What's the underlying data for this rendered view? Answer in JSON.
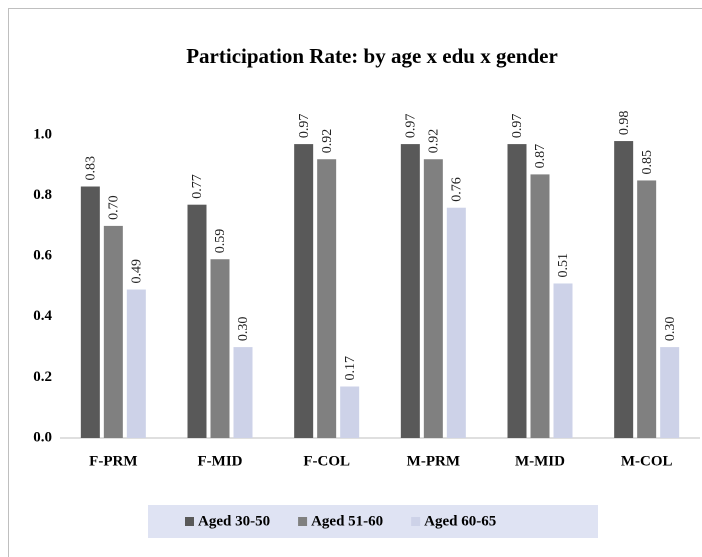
{
  "chart_data": {
    "type": "bar",
    "title": "Participation Rate: by age x edu x gender",
    "categories": [
      "F-PRM",
      "F-MID",
      "F-COL",
      "M-PRM",
      "M-MID",
      "M-COL"
    ],
    "series": [
      {
        "name": "Aged 30-50",
        "color": "#595959",
        "values": [
          0.83,
          0.77,
          0.97,
          0.97,
          0.97,
          0.98
        ],
        "value_labels": [
          "0.83",
          "0.77",
          "0.97",
          "0.97",
          "0.97",
          "0.98"
        ]
      },
      {
        "name": "Aged 51-60",
        "color": "#808080",
        "values": [
          0.7,
          0.59,
          0.92,
          0.92,
          0.87,
          0.85
        ],
        "value_labels": [
          "0.70",
          "0.59",
          "0.92",
          "0.92",
          "0.87",
          "0.85"
        ]
      },
      {
        "name": "Aged 60-65",
        "color": "#cdd2e8",
        "values": [
          0.49,
          0.3,
          0.17,
          0.76,
          0.51,
          0.3
        ],
        "value_labels": [
          "0.49",
          "0.30",
          "0.17",
          "0.76",
          "0.51",
          "0.30"
        ]
      }
    ],
    "ylim": [
      0,
      1
    ],
    "yticks": [
      {
        "value": 0,
        "label": "0.0"
      },
      0.2,
      0.4,
      0.6,
      0.8,
      {
        "value": 1,
        "label": "1.0"
      }
    ],
    "grid": false,
    "legend": "bottom"
  }
}
